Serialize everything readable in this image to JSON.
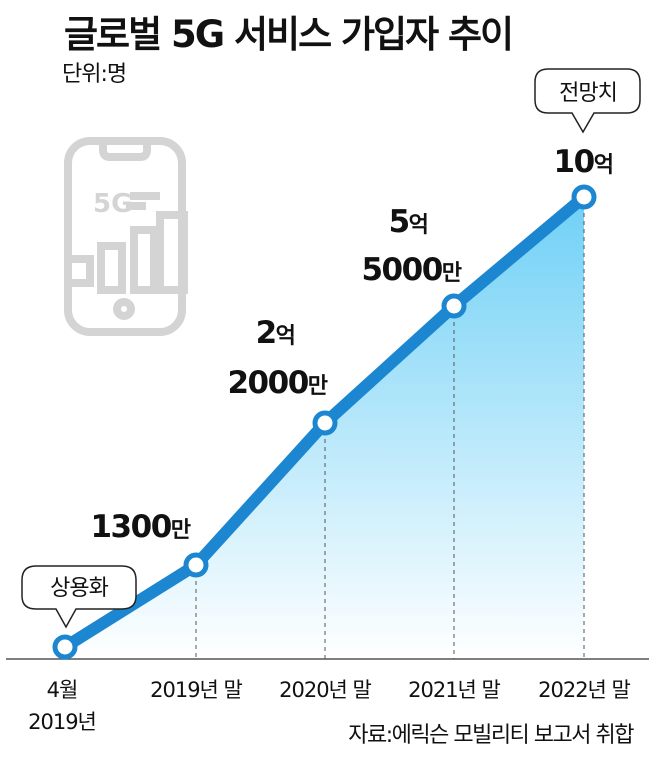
{
  "title": "글로벌 5G 서비스 가입자 추이",
  "unit": "단위:명",
  "source": "자료:에릭슨 모빌리티 보고서 취합",
  "icon": {
    "name": "5g-phone-icon",
    "text": "5G"
  },
  "callouts": {
    "start": "상용화",
    "end": "전망치"
  },
  "colors": {
    "line": "#1c87d0",
    "fill_top": "#6fd0f6",
    "fill_bottom": "#ffffff",
    "icon": "#d4d4d4"
  },
  "chart_data": {
    "type": "line",
    "title": "글로벌 5G 서비스 가입자 추이",
    "ylabel": "단위:명",
    "x": [
      "4월 2019년",
      "2019년 말",
      "2020년 말",
      "2021년 말",
      "2022년 말"
    ],
    "x_labels": [
      [
        "4월",
        "2019년"
      ],
      [
        "2019년 말"
      ],
      [
        "2020년 말"
      ],
      [
        "2021년 말"
      ],
      [
        "2022년 말"
      ]
    ],
    "values": [
      0,
      13000000,
      220000000,
      550000000,
      1000000000
    ],
    "data_labels": [
      {
        "text": ""
      },
      {
        "num": "1300",
        "suf": "만"
      },
      {
        "line1_num": "2",
        "line1_suf": "억",
        "num": "2000",
        "suf": "만"
      },
      {
        "line1_num": "5",
        "line1_suf": "억",
        "num": "5000",
        "suf": "만"
      },
      {
        "num": "10",
        "suf": "억"
      }
    ],
    "ylim": [
      0,
      1000000000
    ],
    "grid": false,
    "legend": "none"
  }
}
